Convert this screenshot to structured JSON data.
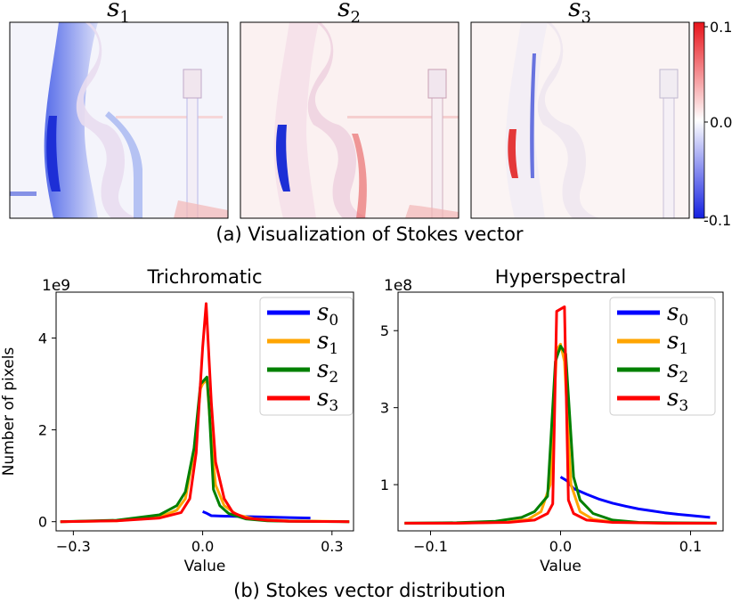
{
  "figure": {
    "caption_a": "(a) Visualization of Stokes vector",
    "caption_b": "(b) Stokes vector distribution"
  },
  "images": [
    {
      "label_base": "s",
      "label_sub": "1"
    },
    {
      "label_base": "s",
      "label_sub": "2"
    },
    {
      "label_base": "s",
      "label_sub": "3"
    }
  ],
  "colorbar": {
    "ticks": [
      "0.1",
      "0.0",
      "-0.1"
    ],
    "colors": {
      "top": "#e8141b",
      "mid": "#ffffff",
      "bottom": "#1420e0"
    }
  },
  "chart_data": [
    {
      "type": "line",
      "title": "Trichromatic",
      "xlabel": "Value",
      "ylabel": "Number of pixels",
      "y_scale_label": "1e9",
      "xlim": [
        -0.34,
        0.35
      ],
      "ylim": [
        -0.2,
        5.0
      ],
      "xticks": [
        {
          "value": -0.3,
          "label": "−0.3"
        },
        {
          "value": 0.0,
          "label": "0.0"
        },
        {
          "value": 0.3,
          "label": "0.3"
        }
      ],
      "yticks": [
        {
          "value": 0,
          "label": "0"
        },
        {
          "value": 2,
          "label": "2"
        },
        {
          "value": 4,
          "label": "4"
        }
      ],
      "legend_position": "top-right",
      "series": [
        {
          "name_base": "s",
          "name_sub": "0",
          "color": "#0000ff",
          "x": [
            0.0,
            0.01,
            0.02,
            0.05,
            0.1,
            0.15,
            0.2,
            0.25
          ],
          "y": [
            0.22,
            0.18,
            0.13,
            0.12,
            0.11,
            0.1,
            0.09,
            0.08
          ]
        },
        {
          "name_base": "s",
          "name_sub": "1",
          "color": "#ffa500",
          "x": [
            -0.33,
            -0.2,
            -0.1,
            -0.06,
            -0.04,
            -0.02,
            -0.005,
            0.0,
            0.01,
            0.02,
            0.03,
            0.05,
            0.08,
            0.12,
            0.2,
            0.34
          ],
          "y": [
            0.0,
            0.02,
            0.1,
            0.25,
            0.5,
            1.5,
            2.9,
            3.0,
            3.1,
            1.8,
            0.8,
            0.35,
            0.15,
            0.06,
            0.02,
            0.0
          ]
        },
        {
          "name_base": "s",
          "name_sub": "2",
          "color": "#008000",
          "x": [
            -0.33,
            -0.2,
            -0.1,
            -0.06,
            -0.04,
            -0.02,
            -0.005,
            0.01,
            0.015,
            0.025,
            0.04,
            0.06,
            0.1,
            0.15,
            0.2,
            0.34
          ],
          "y": [
            0.0,
            0.03,
            0.15,
            0.35,
            0.65,
            1.6,
            3.0,
            3.15,
            2.5,
            0.7,
            0.35,
            0.18,
            0.06,
            0.02,
            0.01,
            0.0
          ]
        },
        {
          "name_base": "s",
          "name_sub": "3",
          "color": "#ff0000",
          "x": [
            -0.33,
            -0.2,
            -0.1,
            -0.05,
            -0.03,
            -0.015,
            0.0,
            0.008,
            0.02,
            0.03,
            0.05,
            0.07,
            0.1,
            0.15,
            0.2,
            0.34
          ],
          "y": [
            0.0,
            0.02,
            0.08,
            0.2,
            0.5,
            1.5,
            3.8,
            4.75,
            2.6,
            1.3,
            0.5,
            0.2,
            0.08,
            0.03,
            0.01,
            0.0
          ]
        }
      ]
    },
    {
      "type": "line",
      "title": "Hyperspectral",
      "xlabel": "Value",
      "ylabel": "",
      "y_scale_label": "1e8",
      "xlim": [
        -0.125,
        0.125
      ],
      "ylim": [
        -0.2,
        6.0
      ],
      "xticks": [
        {
          "value": -0.1,
          "label": "−0.1"
        },
        {
          "value": 0.0,
          "label": "0.0"
        },
        {
          "value": 0.1,
          "label": "0.1"
        }
      ],
      "yticks": [
        {
          "value": 1,
          "label": "1"
        },
        {
          "value": 3,
          "label": "3"
        },
        {
          "value": 5,
          "label": "5"
        }
      ],
      "legend_position": "top-right",
      "series": [
        {
          "name_base": "s",
          "name_sub": "0",
          "color": "#0000ff",
          "x": [
            0.0,
            0.005,
            0.01,
            0.02,
            0.03,
            0.04,
            0.05,
            0.06,
            0.07,
            0.08,
            0.09,
            0.1,
            0.115
          ],
          "y": [
            1.2,
            1.1,
            0.9,
            0.75,
            0.62,
            0.52,
            0.44,
            0.37,
            0.32,
            0.27,
            0.23,
            0.2,
            0.15
          ]
        },
        {
          "name_base": "s",
          "name_sub": "1",
          "color": "#ffa500",
          "x": [
            -0.12,
            -0.08,
            -0.04,
            -0.025,
            -0.015,
            -0.008,
            -0.003,
            0.0,
            0.003,
            0.008,
            0.015,
            0.025,
            0.04,
            0.08,
            0.12
          ],
          "y": [
            0.0,
            0.0,
            0.03,
            0.1,
            0.3,
            1.0,
            4.5,
            4.65,
            4.2,
            1.0,
            0.3,
            0.1,
            0.03,
            0.0,
            0.0
          ]
        },
        {
          "name_base": "s",
          "name_sub": "2",
          "color": "#008000",
          "x": [
            -0.12,
            -0.08,
            -0.05,
            -0.03,
            -0.02,
            -0.01,
            -0.004,
            0.0,
            0.004,
            0.01,
            0.015,
            0.025,
            0.04,
            0.06,
            0.08,
            0.12
          ],
          "y": [
            0.0,
            0.01,
            0.05,
            0.15,
            0.3,
            0.7,
            4.2,
            4.6,
            4.4,
            1.2,
            0.6,
            0.25,
            0.08,
            0.02,
            0.01,
            0.0
          ]
        },
        {
          "name_base": "s",
          "name_sub": "3",
          "color": "#ff0000",
          "x": [
            -0.12,
            -0.08,
            -0.04,
            -0.02,
            -0.01,
            -0.006,
            -0.003,
            0.003,
            0.006,
            0.01,
            0.02,
            0.04,
            0.08,
            0.12
          ],
          "y": [
            0.0,
            0.0,
            0.02,
            0.08,
            0.25,
            0.5,
            5.5,
            5.62,
            0.6,
            0.25,
            0.08,
            0.02,
            0.0,
            0.0
          ]
        }
      ]
    }
  ]
}
